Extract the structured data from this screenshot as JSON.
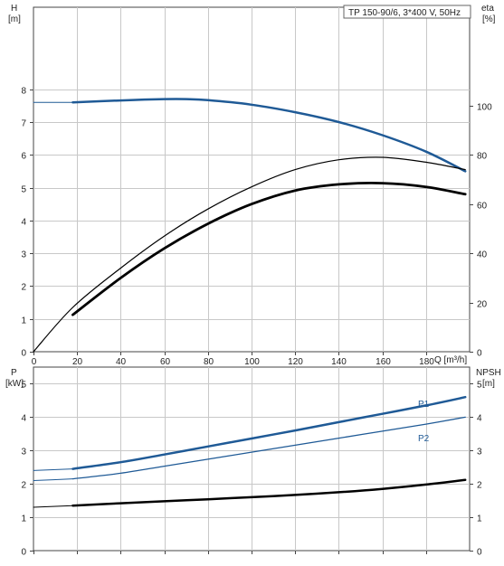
{
  "title_box": "TP 150-90/6, 3*400 V, 50Hz",
  "top_panel": {
    "y_left_label": "H",
    "y_left_unit": "[m]",
    "y_right_label": "eta",
    "y_right_unit": "[%]",
    "x_label": "Q [m³/h]",
    "x_ticks": [
      "0",
      "20",
      "40",
      "60",
      "80",
      "100",
      "120",
      "140",
      "160",
      "180"
    ],
    "y_left_ticks": [
      "0",
      "1",
      "2",
      "3",
      "4",
      "5",
      "6",
      "7",
      "8"
    ],
    "y_right_ticks": [
      "0",
      "20",
      "40",
      "60",
      "80",
      "100"
    ]
  },
  "bottom_panel": {
    "y_left_label": "P",
    "y_left_unit": "[kW]",
    "y_right_label": "NPSH",
    "y_right_unit": "[m]",
    "y_left_ticks": [
      "0",
      "1",
      "2",
      "3",
      "4",
      "5"
    ],
    "y_right_ticks": [
      "0",
      "1",
      "2",
      "3",
      "4",
      "5"
    ],
    "series_labels": {
      "p1": "P1",
      "p2": "P2"
    }
  },
  "colors": {
    "head": "#1f5a96",
    "eta": "#000000",
    "p1": "#1f5a96",
    "p2": "#1f5a96",
    "npsh": "#000000",
    "label": "#1f5a96"
  },
  "chart_data": [
    {
      "type": "line",
      "x": [
        0,
        18,
        20,
        40,
        60,
        70,
        80,
        100,
        120,
        140,
        160,
        180,
        198
      ],
      "xlim": [
        0,
        200
      ],
      "ylim": [
        0,
        10.5
      ],
      "y2lim": [
        0,
        140
      ],
      "series": [
        {
          "key": "head",
          "axis": "left",
          "x": [
            0,
            18,
            40,
            60,
            70,
            80,
            100,
            120,
            140,
            160,
            180,
            198
          ],
          "values": [
            7.6,
            7.6,
            7.66,
            7.7,
            7.7,
            7.67,
            7.53,
            7.3,
            7.0,
            6.6,
            6.1,
            5.5
          ]
        },
        {
          "key": "eta_thin",
          "axis": "right",
          "x": [
            0,
            18,
            40,
            60,
            80,
            100,
            120,
            140,
            160,
            180,
            198
          ],
          "values": [
            0,
            18,
            34,
            47,
            58,
            67,
            74,
            78,
            79,
            77,
            74
          ]
        },
        {
          "key": "eta_thick",
          "axis": "right",
          "x": [
            18,
            40,
            60,
            80,
            100,
            120,
            140,
            160,
            180,
            198
          ],
          "values": [
            15,
            30,
            42,
            52,
            60,
            65.5,
            68,
            68.5,
            67,
            64
          ]
        }
      ]
    },
    {
      "type": "line",
      "x": [
        0,
        18,
        40,
        60,
        80,
        100,
        120,
        140,
        160,
        180,
        198
      ],
      "xlim": [
        0,
        200
      ],
      "ylim": [
        0,
        5.5
      ],
      "series": [
        {
          "key": "p1",
          "name": "P1",
          "axis": "left",
          "x": [
            0,
            18,
            40,
            60,
            80,
            100,
            120,
            140,
            160,
            180,
            198
          ],
          "values": [
            2.4,
            2.45,
            2.65,
            2.88,
            3.12,
            3.36,
            3.6,
            3.85,
            4.1,
            4.35,
            4.6
          ]
        },
        {
          "key": "p2",
          "name": "P2",
          "axis": "left",
          "x": [
            0,
            18,
            40,
            60,
            80,
            100,
            120,
            140,
            160,
            180,
            198
          ],
          "values": [
            2.1,
            2.15,
            2.32,
            2.53,
            2.74,
            2.95,
            3.16,
            3.37,
            3.58,
            3.79,
            4.0
          ]
        },
        {
          "key": "npsh",
          "axis": "right",
          "x": [
            0,
            18,
            40,
            60,
            80,
            100,
            120,
            140,
            160,
            180,
            198
          ],
          "values": [
            1.3,
            1.35,
            1.42,
            1.48,
            1.54,
            1.6,
            1.67,
            1.75,
            1.85,
            1.98,
            2.12
          ]
        }
      ]
    }
  ]
}
